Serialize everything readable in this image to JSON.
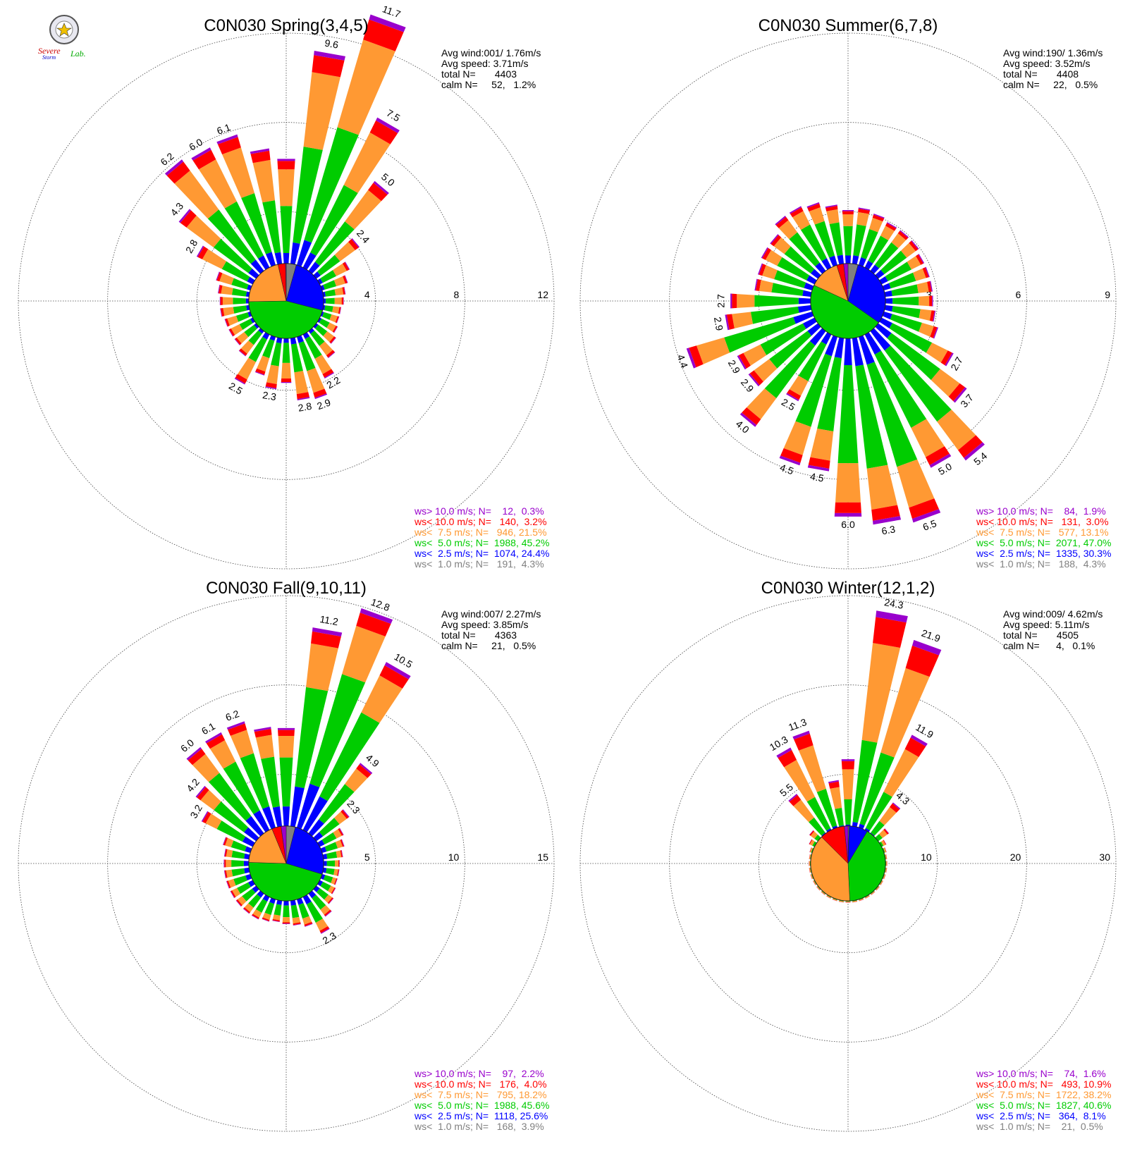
{
  "bin_colors": [
    "#808080",
    "#0000ff",
    "#00cc00",
    "#ff9933",
    "#ff0000",
    "#9900cc"
  ],
  "logo": {
    "line1": "Severe",
    "line2": "Storm",
    "line3": "Lab."
  },
  "chart_data": [
    {
      "type": "windrose",
      "title": "C0N030 Spring(3,4,5)",
      "rings": [
        4,
        8,
        12
      ],
      "stats": [
        "Avg wind:001/ 1.76m/s",
        "Avg speed: 3.71m/s",
        "total N=       4403",
        "calm N=     52,   1.2%"
      ],
      "legend": [
        "ws> 10.0 m/s; N=    12,  0.3%",
        "ws< 10.0 m/s; N=   140,  3.2%",
        "ws<  7.5 m/s; N=   946, 21.5%",
        "ws<  5.0 m/s; N=  1988, 45.2%",
        "ws<  2.5 m/s; N=  1074, 24.4%",
        "ws<  1.0 m/s; N=   191,  4.3%"
      ],
      "pie_shares": [
        4.3,
        24.4,
        45.2,
        21.5,
        3.2,
        0.3
      ],
      "bars": [
        {
          "dir": 0,
          "total": 4.7
        },
        {
          "dir": 10,
          "total": 9.6,
          "label": "9.6"
        },
        {
          "dir": 20,
          "total": 11.7,
          "label": "11.7"
        },
        {
          "dir": 30,
          "total": 7.5,
          "label": "7.5"
        },
        {
          "dir": 40,
          "total": 5.0,
          "label": "5.0"
        },
        {
          "dir": 50,
          "total": 2.4,
          "label": "2.4"
        },
        {
          "dir": 60,
          "total": 1.5
        },
        {
          "dir": 70,
          "total": 1.2
        },
        {
          "dir": 80,
          "total": 1.0
        },
        {
          "dir": 90,
          "total": 0.9
        },
        {
          "dir": 100,
          "total": 0.8
        },
        {
          "dir": 110,
          "total": 0.8
        },
        {
          "dir": 120,
          "total": 0.9
        },
        {
          "dir": 130,
          "total": 1.1
        },
        {
          "dir": 140,
          "total": 1.5
        },
        {
          "dir": 150,
          "total": 2.2,
          "label": "2.2"
        },
        {
          "dir": 160,
          "total": 2.9,
          "label": "2.9"
        },
        {
          "dir": 170,
          "total": 2.8,
          "label": "2.8"
        },
        {
          "dir": 180,
          "total": 2.0
        },
        {
          "dir": 190,
          "total": 2.3,
          "label": "2.3"
        },
        {
          "dir": 200,
          "total": 1.8
        },
        {
          "dir": 210,
          "total": 2.5,
          "label": "2.5"
        },
        {
          "dir": 220,
          "total": 1.4
        },
        {
          "dir": 230,
          "total": 1.2
        },
        {
          "dir": 240,
          "total": 1.2
        },
        {
          "dir": 250,
          "total": 1.2
        },
        {
          "dir": 260,
          "total": 1.3
        },
        {
          "dir": 270,
          "total": 1.3
        },
        {
          "dir": 280,
          "total": 1.4
        },
        {
          "dir": 290,
          "total": 1.6
        },
        {
          "dir": 300,
          "total": 2.8,
          "label": "2.8"
        },
        {
          "dir": 310,
          "total": 4.3,
          "label": "4.3"
        },
        {
          "dir": 320,
          "total": 6.2,
          "label": "6.2"
        },
        {
          "dir": 330,
          "total": 6.0,
          "label": "6.0"
        },
        {
          "dir": 340,
          "total": 6.1,
          "label": "6.1"
        },
        {
          "dir": 350,
          "total": 5.2
        }
      ]
    },
    {
      "type": "windrose",
      "title": "C0N030 Summer(6,7,8)",
      "rings": [
        3,
        6,
        9
      ],
      "stats": [
        "Avg wind:190/ 1.36m/s",
        "Avg speed: 3.52m/s",
        "total N=       4408",
        "calm N=     22,   0.5%"
      ],
      "legend": [
        "ws> 10.0 m/s; N=    84,  1.9%",
        "ws< 10.0 m/s; N=   131,  3.0%",
        "ws<  7.5 m/s; N=   577, 13.1%",
        "ws<  5.0 m/s; N=  2071, 47.0%",
        "ws<  2.5 m/s; N=  1335, 30.3%",
        "ws<  1.0 m/s; N=   188,  4.3%"
      ],
      "pie_shares": [
        4.3,
        30.3,
        47.0,
        13.1,
        3.0,
        1.9
      ],
      "bars": [
        {
          "dir": 0,
          "total": 1.8
        },
        {
          "dir": 10,
          "total": 1.9
        },
        {
          "dir": 20,
          "total": 1.8
        },
        {
          "dir": 30,
          "total": 1.7
        },
        {
          "dir": 40,
          "total": 1.7
        },
        {
          "dir": 50,
          "total": 1.7
        },
        {
          "dir": 60,
          "total": 1.6
        },
        {
          "dir": 70,
          "total": 1.6
        },
        {
          "dir": 80,
          "total": 1.6
        },
        {
          "dir": 90,
          "total": 1.6
        },
        {
          "dir": 100,
          "total": 1.7
        },
        {
          "dir": 110,
          "total": 1.9
        },
        {
          "dir": 120,
          "total": 2.7,
          "label": "2.7"
        },
        {
          "dir": 130,
          "total": 3.7,
          "label": "3.7"
        },
        {
          "dir": 140,
          "total": 5.4,
          "label": "5.4"
        },
        {
          "dir": 150,
          "total": 5.0,
          "label": "5.0"
        },
        {
          "dir": 160,
          "total": 6.5,
          "label": "6.5"
        },
        {
          "dir": 170,
          "total": 6.3,
          "label": "6.3"
        },
        {
          "dir": 180,
          "total": 6.0,
          "label": "6.0"
        },
        {
          "dir": 190,
          "total": 4.5,
          "label": "4.5"
        },
        {
          "dir": 200,
          "total": 4.5,
          "label": "4.5"
        },
        {
          "dir": 210,
          "total": 2.5,
          "label": "2.5"
        },
        {
          "dir": 220,
          "total": 4.0,
          "label": "4.0"
        },
        {
          "dir": 230,
          "total": 2.9,
          "label": "2.9"
        },
        {
          "dir": 240,
          "total": 2.9,
          "label": "2.9"
        },
        {
          "dir": 250,
          "total": 4.4,
          "label": "4.4"
        },
        {
          "dir": 260,
          "total": 2.9,
          "label": "2.9"
        },
        {
          "dir": 270,
          "total": 2.7,
          "label": "2.7"
        },
        {
          "dir": 280,
          "total": 1.9
        },
        {
          "dir": 290,
          "total": 1.9
        },
        {
          "dir": 300,
          "total": 2.0
        },
        {
          "dir": 310,
          "total": 2.0
        },
        {
          "dir": 320,
          "total": 2.3
        },
        {
          "dir": 330,
          "total": 2.3
        },
        {
          "dir": 340,
          "total": 2.2
        },
        {
          "dir": 350,
          "total": 2.0
        }
      ]
    },
    {
      "type": "windrose",
      "title": "C0N030 Fall(9,10,11)",
      "rings": [
        5,
        10,
        15
      ],
      "stats": [
        "Avg wind:007/ 2.27m/s",
        "Avg speed: 3.85m/s",
        "total N=       4363",
        "calm N=     21,   0.5%"
      ],
      "legend": [
        "ws> 10.0 m/s; N=    97,  2.2%",
        "ws< 10.0 m/s; N=   176,  4.0%",
        "ws<  7.5 m/s; N=   795, 18.2%",
        "ws<  5.0 m/s; N=  1988, 45.6%",
        "ws<  2.5 m/s; N=  1118, 25.6%",
        "ws<  1.0 m/s; N=   168,  3.9%"
      ],
      "pie_shares": [
        3.9,
        25.6,
        45.6,
        18.2,
        4.0,
        2.2
      ],
      "bars": [
        {
          "dir": 0,
          "total": 5.5
        },
        {
          "dir": 10,
          "total": 11.2,
          "label": "11.2"
        },
        {
          "dir": 20,
          "total": 12.8,
          "label": "12.8"
        },
        {
          "dir": 30,
          "total": 10.5,
          "label": "10.5"
        },
        {
          "dir": 40,
          "total": 4.9,
          "label": "4.9"
        },
        {
          "dir": 50,
          "total": 2.3,
          "label": "2.3"
        },
        {
          "dir": 60,
          "total": 1.5
        },
        {
          "dir": 70,
          "total": 1.3
        },
        {
          "dir": 80,
          "total": 1.1
        },
        {
          "dir": 90,
          "total": 0.9
        },
        {
          "dir": 100,
          "total": 0.9
        },
        {
          "dir": 110,
          "total": 0.9
        },
        {
          "dir": 120,
          "total": 1.0
        },
        {
          "dir": 130,
          "total": 1.2
        },
        {
          "dir": 140,
          "total": 1.6
        },
        {
          "dir": 150,
          "total": 2.3,
          "label": "2.3"
        },
        {
          "dir": 160,
          "total": 1.6
        },
        {
          "dir": 170,
          "total": 1.4
        },
        {
          "dir": 180,
          "total": 1.3
        },
        {
          "dir": 190,
          "total": 1.2
        },
        {
          "dir": 200,
          "total": 1.3
        },
        {
          "dir": 210,
          "total": 1.4
        },
        {
          "dir": 220,
          "total": 1.4
        },
        {
          "dir": 230,
          "total": 1.4
        },
        {
          "dir": 240,
          "total": 1.4
        },
        {
          "dir": 250,
          "total": 1.4
        },
        {
          "dir": 260,
          "total": 1.4
        },
        {
          "dir": 270,
          "total": 1.4
        },
        {
          "dir": 280,
          "total": 1.4
        },
        {
          "dir": 290,
          "total": 1.6
        },
        {
          "dir": 300,
          "total": 3.2,
          "label": "3.2"
        },
        {
          "dir": 310,
          "total": 4.2,
          "label": "4.2"
        },
        {
          "dir": 320,
          "total": 6.0,
          "label": "6.0"
        },
        {
          "dir": 330,
          "total": 6.1,
          "label": "6.1"
        },
        {
          "dir": 340,
          "total": 6.2,
          "label": "6.2"
        },
        {
          "dir": 350,
          "total": 5.6
        }
      ]
    },
    {
      "type": "windrose",
      "title": "C0N030 Winter(12,1,2)",
      "rings": [
        10,
        20,
        30
      ],
      "stats": [
        "Avg wind:009/ 4.62m/s",
        "Avg speed: 5.11m/s",
        "total N=       4505",
        "calm N=      4,   0.1%"
      ],
      "legend": [
        "ws> 10.0 m/s; N=    74,  1.6%",
        "ws< 10.0 m/s; N=   493, 10.9%",
        "ws<  7.5 m/s; N=  1722, 38.2%",
        "ws<  5.0 m/s; N=  1827, 40.6%",
        "ws<  2.5 m/s; N=   364,  8.1%",
        "ws<  1.0 m/s; N=    21,  0.5%"
      ],
      "pie_shares": [
        0.5,
        8.1,
        40.6,
        38.2,
        10.9,
        1.6
      ],
      "bars": [
        {
          "dir": 0,
          "total": 7.5
        },
        {
          "dir": 10,
          "total": 24.3,
          "label": "24.3"
        },
        {
          "dir": 20,
          "total": 21.9,
          "label": "21.9"
        },
        {
          "dir": 30,
          "total": 11.9,
          "label": "11.9"
        },
        {
          "dir": 40,
          "total": 4.3,
          "label": "4.3"
        },
        {
          "dir": 50,
          "total": 1.5
        },
        {
          "dir": 60,
          "total": 0.6
        },
        {
          "dir": 70,
          "total": 0.3
        },
        {
          "dir": 80,
          "total": 0.2
        },
        {
          "dir": 90,
          "total": 0.2
        },
        {
          "dir": 100,
          "total": 0.2
        },
        {
          "dir": 110,
          "total": 0.2
        },
        {
          "dir": 120,
          "total": 0.2
        },
        {
          "dir": 130,
          "total": 0.2
        },
        {
          "dir": 140,
          "total": 0.2
        },
        {
          "dir": 150,
          "total": 0.2
        },
        {
          "dir": 160,
          "total": 0.2
        },
        {
          "dir": 170,
          "total": 0.2
        },
        {
          "dir": 180,
          "total": 0.2
        },
        {
          "dir": 190,
          "total": 0.2
        },
        {
          "dir": 200,
          "total": 0.2
        },
        {
          "dir": 210,
          "total": 0.2
        },
        {
          "dir": 220,
          "total": 0.2
        },
        {
          "dir": 230,
          "total": 0.2
        },
        {
          "dir": 240,
          "total": 0.2
        },
        {
          "dir": 250,
          "total": 0.2
        },
        {
          "dir": 260,
          "total": 0.2
        },
        {
          "dir": 270,
          "total": 0.2
        },
        {
          "dir": 280,
          "total": 0.2
        },
        {
          "dir": 290,
          "total": 0.3
        },
        {
          "dir": 300,
          "total": 0.7
        },
        {
          "dir": 310,
          "total": 1.2
        },
        {
          "dir": 320,
          "total": 5.5,
          "label": "5.5"
        },
        {
          "dir": 330,
          "total": 10.3,
          "label": "10.3"
        },
        {
          "dir": 340,
          "total": 11.3,
          "label": "11.3"
        },
        {
          "dir": 350,
          "total": 5.2
        }
      ]
    }
  ]
}
